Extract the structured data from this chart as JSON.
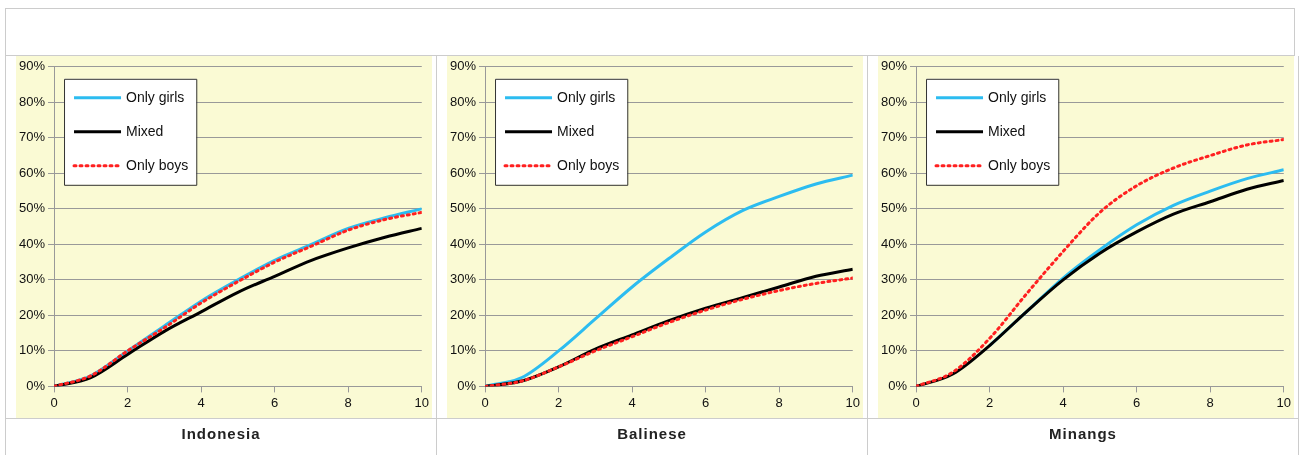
{
  "chart_data": [
    {
      "type": "line",
      "xlabel": "Indonesia",
      "x": [
        0,
        1,
        2,
        3,
        4,
        5,
        6,
        7,
        8,
        9,
        10
      ],
      "xlim": [
        0,
        10
      ],
      "xticks": [
        0,
        2,
        4,
        6,
        8,
        10
      ],
      "ylim": [
        0,
        90
      ],
      "yticks": [
        {
          "value": 0,
          "label": "0%"
        },
        {
          "value": 10,
          "label": "10%"
        },
        {
          "value": 20,
          "label": "20%"
        },
        {
          "value": 30,
          "label": "30%"
        },
        {
          "value": 40,
          "label": "40%"
        },
        {
          "value": 50,
          "label": "50%"
        },
        {
          "value": 60,
          "label": "60%"
        },
        {
          "value": 70,
          "label": "70%"
        },
        {
          "value": 80,
          "label": "80%"
        },
        {
          "value": 90,
          "label": "90%"
        }
      ],
      "grid": "y",
      "legend": "top left",
      "marker": "none",
      "series": [
        {
          "name": "Only girls",
          "color": "#2cbcf0",
          "line_style": "solid",
          "values": [
            0,
            3,
            10,
            17,
            24,
            30,
            35.5,
            40,
            44.5,
            47.5,
            50
          ]
        },
        {
          "name": "Mixed",
          "color": "#000000",
          "line_style": "solid",
          "values": [
            0,
            2.5,
            9,
            15.5,
            21,
            26.5,
            31,
            35.5,
            39,
            42,
            44.5
          ]
        },
        {
          "name": "Only boys",
          "color": "#ff2020",
          "line_style": "dotted",
          "values": [
            0,
            3,
            10,
            16.5,
            23.5,
            29.5,
            35,
            39.5,
            44,
            47,
            49
          ]
        }
      ]
    },
    {
      "type": "line",
      "xlabel": "Balinese",
      "x": [
        0,
        1,
        2,
        3,
        4,
        5,
        6,
        7,
        8,
        9,
        10
      ],
      "xlim": [
        0,
        10
      ],
      "xticks": [
        0,
        2,
        4,
        6,
        8,
        10
      ],
      "ylim": [
        0,
        90
      ],
      "yticks": [
        {
          "value": 0,
          "label": "0%"
        },
        {
          "value": 10,
          "label": "10%"
        },
        {
          "value": 20,
          "label": "20%"
        },
        {
          "value": 30,
          "label": "30%"
        },
        {
          "value": 40,
          "label": "40%"
        },
        {
          "value": 50,
          "label": "50%"
        },
        {
          "value": 60,
          "label": "60%"
        },
        {
          "value": 70,
          "label": "70%"
        },
        {
          "value": 80,
          "label": "80%"
        },
        {
          "value": 90,
          "label": "90%"
        }
      ],
      "grid": "y",
      "legend": "top left",
      "marker": "none",
      "series": [
        {
          "name": "Only girls",
          "color": "#2cbcf0",
          "line_style": "solid",
          "values": [
            0,
            2.5,
            10,
            19,
            28,
            36,
            43.5,
            49.5,
            53.5,
            57,
            59.5
          ]
        },
        {
          "name": "Mixed",
          "color": "#000000",
          "line_style": "solid",
          "values": [
            0,
            1.5,
            5.5,
            10.5,
            14.5,
            18.5,
            22,
            25,
            28,
            31,
            33
          ]
        },
        {
          "name": "Only boys",
          "color": "#ff2020",
          "line_style": "dotted",
          "values": [
            0,
            1.5,
            5.5,
            10,
            14,
            18,
            21.5,
            24.5,
            27,
            29,
            30.5
          ]
        }
      ]
    },
    {
      "type": "line",
      "xlabel": "Minangs",
      "x": [
        0,
        1,
        2,
        3,
        4,
        5,
        6,
        7,
        8,
        9,
        10
      ],
      "xlim": [
        0,
        10
      ],
      "xticks": [
        0,
        2,
        4,
        6,
        8,
        10
      ],
      "ylim": [
        0,
        90
      ],
      "yticks": [
        {
          "value": 0,
          "label": "0%"
        },
        {
          "value": 10,
          "label": "10%"
        },
        {
          "value": 20,
          "label": "20%"
        },
        {
          "value": 30,
          "label": "30%"
        },
        {
          "value": 40,
          "label": "40%"
        },
        {
          "value": 50,
          "label": "50%"
        },
        {
          "value": 60,
          "label": "60%"
        },
        {
          "value": 70,
          "label": "70%"
        },
        {
          "value": 80,
          "label": "80%"
        },
        {
          "value": 90,
          "label": "90%"
        }
      ],
      "grid": "y",
      "legend": "top left",
      "marker": "none",
      "series": [
        {
          "name": "Only girls",
          "color": "#2cbcf0",
          "line_style": "solid",
          "values": [
            null,
            null,
            11.5,
            21,
            30.5,
            38.5,
            45.5,
            51,
            55,
            58.5,
            61
          ]
        },
        {
          "name": "Mixed",
          "color": "#000000",
          "line_style": "solid",
          "values": [
            0,
            3.5,
            11.5,
            21,
            30,
            37.5,
            43.5,
            48.5,
            52,
            55.5,
            58
          ]
        },
        {
          "name": "Only boys",
          "color": "#ff2020",
          "line_style": "dotted",
          "values": [
            0,
            4,
            13.5,
            26,
            38,
            49,
            56.5,
            61.5,
            65,
            68,
            69.5
          ]
        }
      ]
    }
  ]
}
